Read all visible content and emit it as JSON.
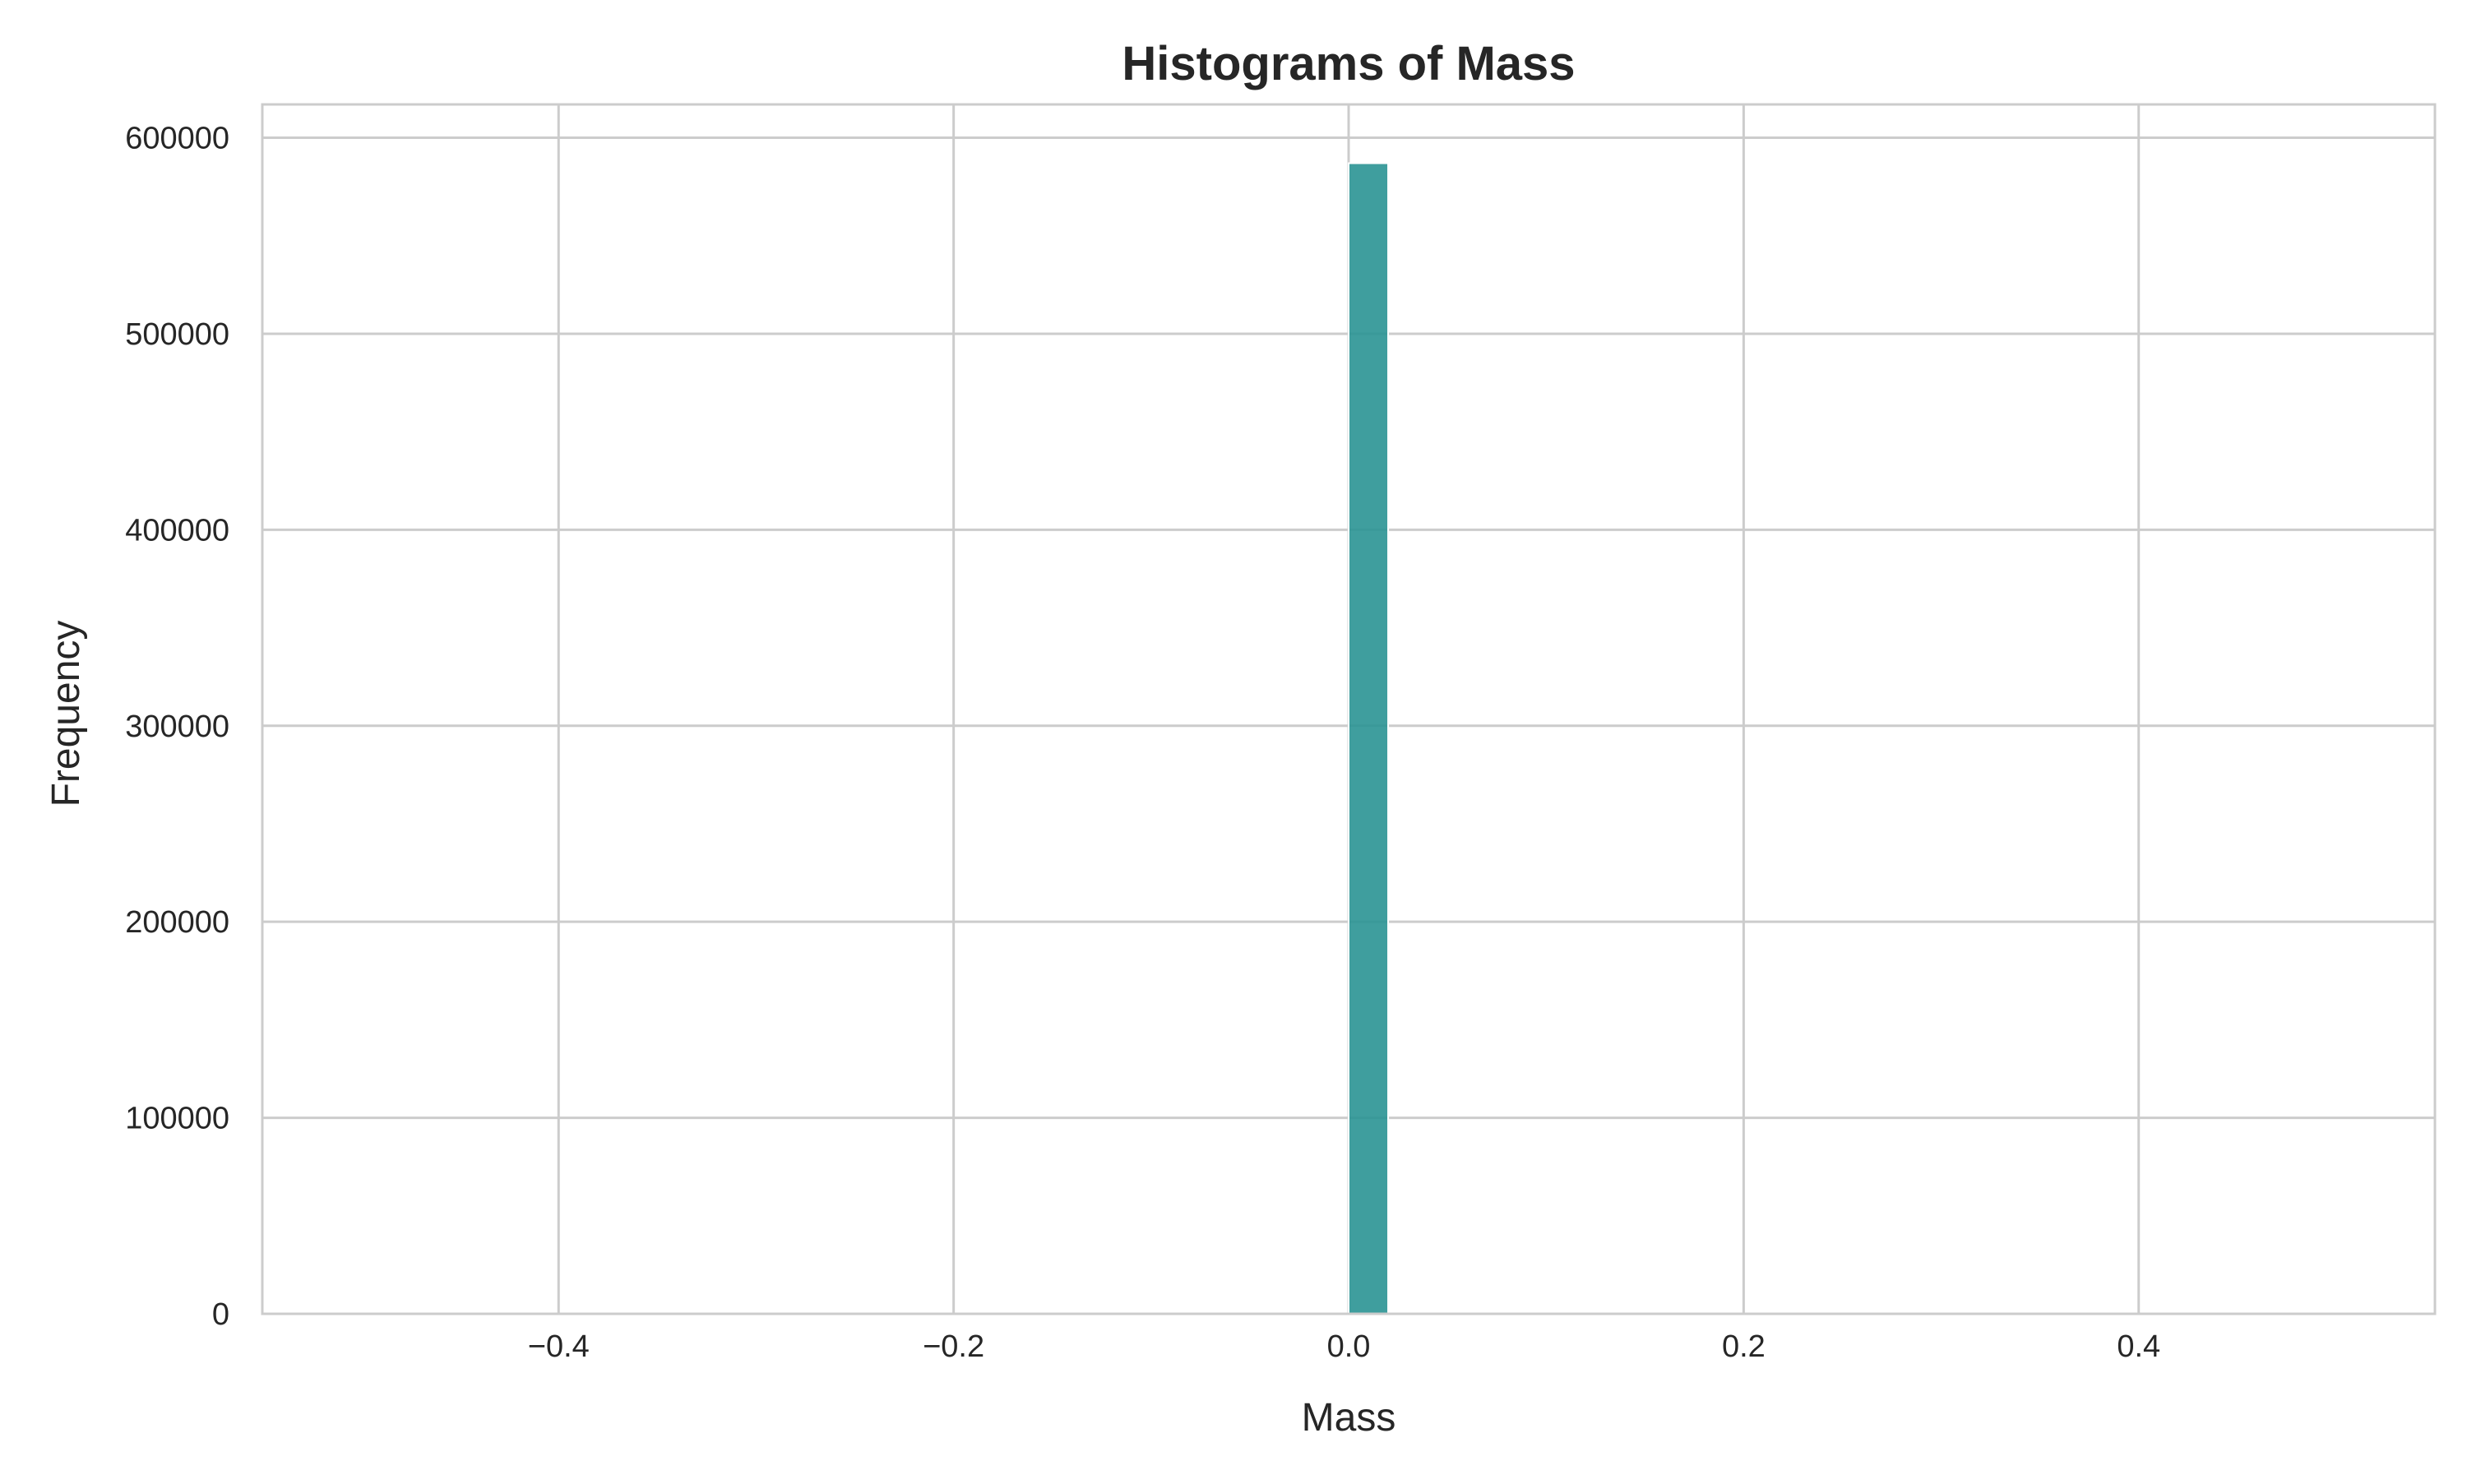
{
  "chart_data": {
    "type": "bar",
    "title": "Histograms of Mass",
    "xlabel": "Mass",
    "ylabel": "Frequency",
    "xlim": [
      -0.55,
      0.55
    ],
    "ylim": [
      0,
      617000
    ],
    "xticks": [
      -0.4,
      -0.2,
      0.0,
      0.2,
      0.4
    ],
    "xtick_labels": [
      "−0.4",
      "−0.2",
      "0.0",
      "0.2",
      "0.4"
    ],
    "yticks": [
      0,
      100000,
      200000,
      300000,
      400000,
      500000,
      600000
    ],
    "ytick_labels": [
      "0",
      "100000",
      "200000",
      "300000",
      "400000",
      "500000",
      "600000"
    ],
    "grid": true,
    "bins": [
      {
        "x0": 0.0,
        "x1": 0.02,
        "count": 587000
      }
    ],
    "bar_color": "#2a9494"
  }
}
